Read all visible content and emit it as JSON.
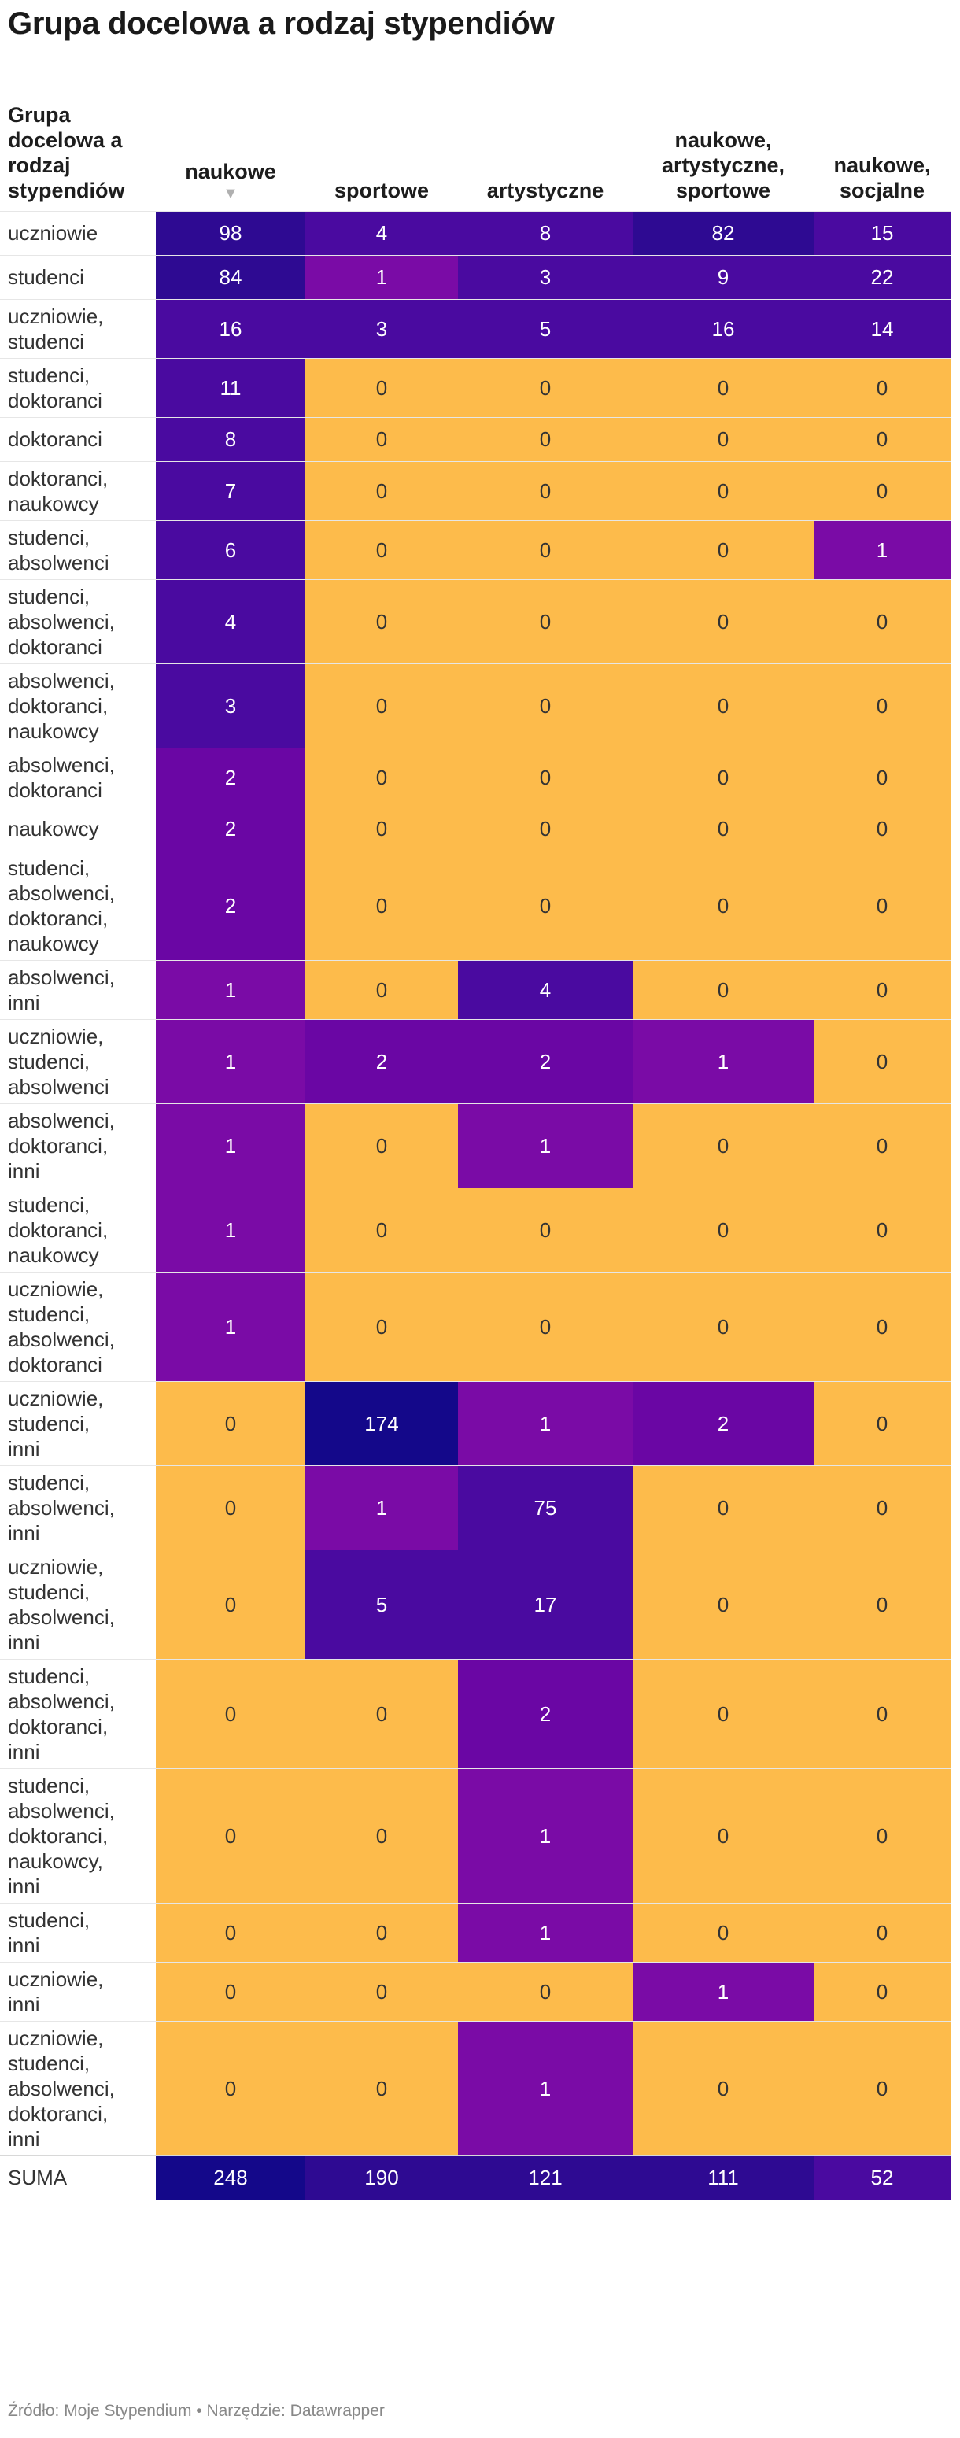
{
  "title": "Grupa docelowa a rodzaj stypendiów",
  "source": "Źródło: Moje Stypendium • Narzędzie: Datawrapper",
  "colors": {
    "zero": "#fdbb4b",
    "scale": [
      "#f0d8ff",
      "#7a0ba6",
      "#6a06a4",
      "#4a0aa0",
      "#2e0a92",
      "#14088a"
    ],
    "text_light": "#ffffff",
    "text_dark": "#333333"
  },
  "chart_data": {
    "type": "heatmap",
    "title": "Grupa docelowa a rodzaj stypendiów",
    "row_header": "Grupa docelowa a rodzaj stypendiów",
    "sorted_column": "naukowe",
    "sort_icon": "▼",
    "columns": [
      "naukowe",
      "sportowe",
      "artystyczne",
      "naukowe, artystyczne, sportowe",
      "naukowe, socjalne"
    ],
    "rows": [
      {
        "label": "uczniowie",
        "values": [
          98,
          4,
          8,
          82,
          15
        ]
      },
      {
        "label": "studenci",
        "values": [
          84,
          1,
          3,
          9,
          22
        ]
      },
      {
        "label": "uczniowie, studenci",
        "values": [
          16,
          3,
          5,
          16,
          14
        ]
      },
      {
        "label": "studenci, doktoranci",
        "values": [
          11,
          0,
          0,
          0,
          0
        ]
      },
      {
        "label": "doktoranci",
        "values": [
          8,
          0,
          0,
          0,
          0
        ]
      },
      {
        "label": "doktoranci, naukowcy",
        "values": [
          7,
          0,
          0,
          0,
          0
        ]
      },
      {
        "label": "studenci, absolwenci",
        "values": [
          6,
          0,
          0,
          0,
          1
        ]
      },
      {
        "label": "studenci, absolwenci, doktoranci",
        "values": [
          4,
          0,
          0,
          0,
          0
        ]
      },
      {
        "label": "absolwenci, doktoranci, naukowcy",
        "values": [
          3,
          0,
          0,
          0,
          0
        ]
      },
      {
        "label": "absolwenci, doktoranci",
        "values": [
          2,
          0,
          0,
          0,
          0
        ]
      },
      {
        "label": "naukowcy",
        "values": [
          2,
          0,
          0,
          0,
          0
        ]
      },
      {
        "label": "studenci, absolwenci, doktoranci, naukowcy",
        "values": [
          2,
          0,
          0,
          0,
          0
        ]
      },
      {
        "label": "absolwenci, inni",
        "values": [
          1,
          0,
          4,
          0,
          0
        ]
      },
      {
        "label": "uczniowie, studenci, absolwenci",
        "values": [
          1,
          2,
          2,
          1,
          0
        ]
      },
      {
        "label": "absolwenci, doktoranci, inni",
        "values": [
          1,
          0,
          1,
          0,
          0
        ]
      },
      {
        "label": "studenci, doktoranci, naukowcy",
        "values": [
          1,
          0,
          0,
          0,
          0
        ]
      },
      {
        "label": "uczniowie, studenci, absolwenci, doktoranci",
        "values": [
          1,
          0,
          0,
          0,
          0
        ]
      },
      {
        "label": "uczniowie, studenci, inni",
        "values": [
          0,
          174,
          1,
          2,
          0
        ]
      },
      {
        "label": "studenci, absolwenci, inni",
        "values": [
          0,
          1,
          75,
          0,
          0
        ]
      },
      {
        "label": "uczniowie, studenci, absolwenci, inni",
        "values": [
          0,
          5,
          17,
          0,
          0
        ]
      },
      {
        "label": "studenci, absolwenci, doktoranci, inni",
        "values": [
          0,
          0,
          2,
          0,
          0
        ]
      },
      {
        "label": "studenci, absolwenci, doktoranci, naukowcy, inni",
        "values": [
          0,
          0,
          1,
          0,
          0
        ]
      },
      {
        "label": "studenci, inni",
        "values": [
          0,
          0,
          1,
          0,
          0
        ]
      },
      {
        "label": "uczniowie, inni",
        "values": [
          0,
          0,
          0,
          1,
          0
        ]
      },
      {
        "label": "uczniowie, studenci, absolwenci, doktoranci, inni",
        "values": [
          0,
          0,
          1,
          0,
          0
        ]
      }
    ],
    "total": {
      "label": "SUMA",
      "values": [
        248,
        190,
        121,
        111,
        52
      ]
    }
  }
}
